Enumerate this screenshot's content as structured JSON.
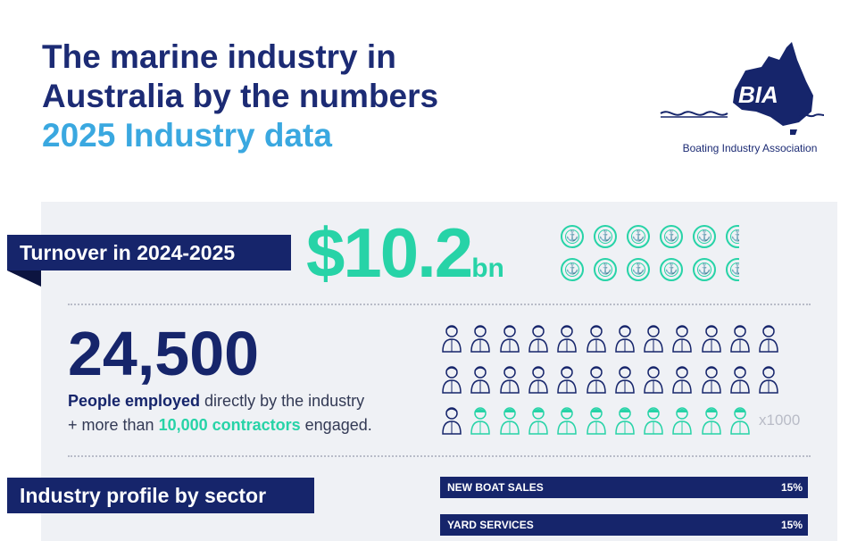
{
  "header": {
    "title_line1": "The marine industry in",
    "title_line2": "Australia by the numbers",
    "subtitle": "2025 Industry data"
  },
  "logo": {
    "text": "BIA",
    "caption": "Boating Industry Association"
  },
  "turnover": {
    "label": "Turnover in 2024-2025",
    "value": "$10.2",
    "suffix": "bn",
    "icon": "anchor-coin-icon"
  },
  "employment": {
    "value": "24,500",
    "line1_bold": "People employed",
    "line1_rest": " directly by the industry",
    "line2_prefix": "+ more than ",
    "line2_bold": "10,000 contractors",
    "line2_suffix": " engaged.",
    "scale_label": "x1000"
  },
  "sectors": {
    "heading": "Industry profile by sector",
    "items": [
      {
        "label": "NEW BOAT SALES",
        "pct": "15%"
      },
      {
        "label": "YARD SERVICES",
        "pct": "15%"
      }
    ]
  },
  "colors": {
    "navy": "#16256b",
    "teal": "#27d3a7",
    "light_blue": "#3aa8e0"
  }
}
